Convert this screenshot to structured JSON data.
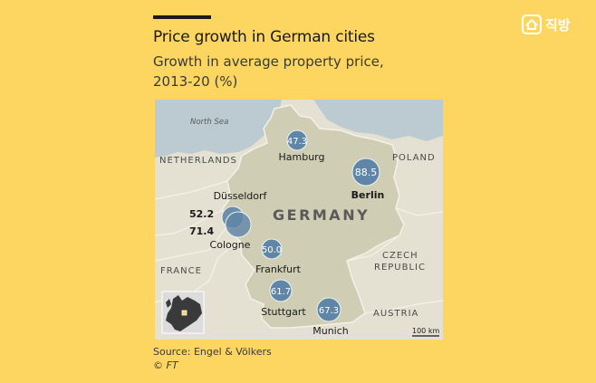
{
  "header": {
    "title": "Price growth in German cities",
    "subtitle_line1": "Growth in average property price,",
    "subtitle_line2": "2013-20 (%)"
  },
  "brand": {
    "logo_text": "직방"
  },
  "map": {
    "labels": {
      "north_sea": "North Sea",
      "netherlands": "NETHERLANDS",
      "france": "FRANCE",
      "germany": "GERMANY",
      "poland": "POLAND",
      "czech_line1": "CZECH",
      "czech_line2": "REPUBLIC",
      "austria": "AUSTRIA",
      "scale": "100 km"
    },
    "cities": [
      {
        "name": "Hamburg",
        "value": "47.3"
      },
      {
        "name": "Berlin",
        "value": "88.5"
      },
      {
        "name": "Düsseldorf",
        "value": "52.2"
      },
      {
        "name": "Cologne",
        "value": "71.4"
      },
      {
        "name": "Frankfurt",
        "value": "50.0"
      },
      {
        "name": "Stuttgart",
        "value": "61.7"
      },
      {
        "name": "Munich",
        "value": "67.3"
      }
    ],
    "colors": {
      "sea": "#bccbd1",
      "germany": "#cfcdb3",
      "neighbors": "#e5e1d2",
      "bubble": "#5f86a6"
    }
  },
  "footer": {
    "source": "Source: Engel & Völkers",
    "credit": "© FT"
  }
}
